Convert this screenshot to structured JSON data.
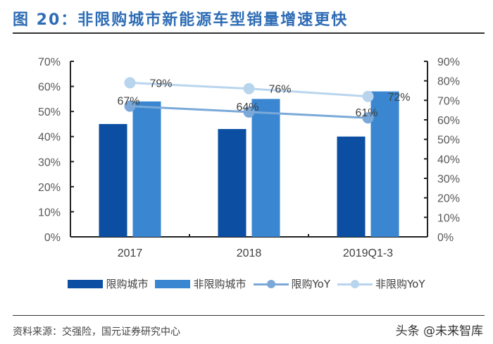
{
  "header": {
    "title": "图 20：非限购城市新能源车型销量增速更快"
  },
  "footer": {
    "source": "资料来源：交强险，国元证券研究中心",
    "watermark": "头条 @未来智库"
  },
  "colors": {
    "restricted": "#0b4ea2",
    "non_restricted": "#3a86d0",
    "restricted_yoy": "#7aa9d9",
    "non_restricted_yoy": "#b9d5ee"
  },
  "chart_data": {
    "type": "bar",
    "title": "非限购城市新能源车型销量增速更快",
    "categories": [
      "2017",
      "2018",
      "2019Q1-3"
    ],
    "series": [
      {
        "name": "限购城市",
        "type": "bar",
        "axis": "left",
        "values": [
          45,
          43,
          40
        ]
      },
      {
        "name": "非限购城市",
        "type": "bar",
        "axis": "left",
        "values": [
          54,
          55,
          58
        ]
      },
      {
        "name": "限购YoY",
        "type": "line",
        "axis": "right",
        "values": [
          67,
          64,
          61
        ],
        "labels": [
          "67%",
          "64%",
          "61%"
        ]
      },
      {
        "name": "非限购YoY",
        "type": "line",
        "axis": "right",
        "values": [
          79,
          76,
          72
        ],
        "labels": [
          "79%",
          "76%",
          "72%"
        ]
      }
    ],
    "y_left": {
      "ylim": [
        0,
        70
      ],
      "ticks": [
        "0%",
        "10%",
        "20%",
        "30%",
        "40%",
        "50%",
        "60%",
        "70%"
      ]
    },
    "y_right": {
      "ylim": [
        0,
        90
      ],
      "ticks": [
        "0%",
        "10%",
        "20%",
        "30%",
        "40%",
        "50%",
        "60%",
        "70%",
        "80%",
        "90%"
      ]
    },
    "xlabel": "",
    "ylabel": "",
    "grid": false,
    "legend_position": "bottom"
  },
  "legend": [
    {
      "label": "限购城市"
    },
    {
      "label": "非限购城市"
    },
    {
      "label": "限购YoY"
    },
    {
      "label": "非限购YoY"
    }
  ]
}
